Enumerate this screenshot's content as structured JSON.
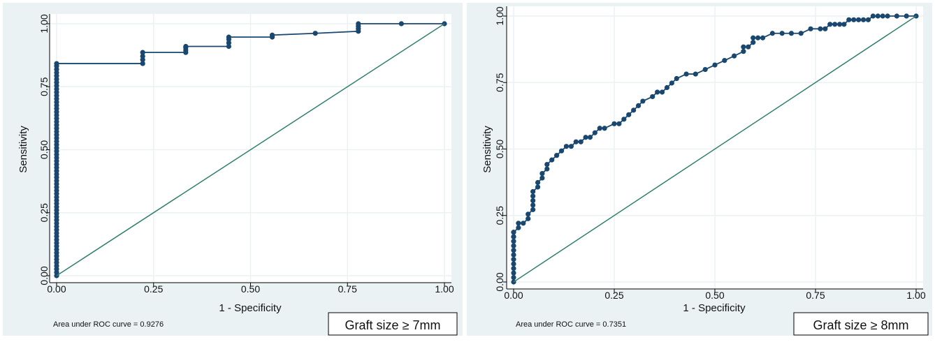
{
  "colors": {
    "outer_bg": "#eaf2f3",
    "plot_bg": "#ffffff",
    "grid": "#eaf2f3",
    "curve": "#1a476f",
    "reference": "#2f7f6e",
    "frame": "#000000"
  },
  "chart_data": [
    {
      "type": "line",
      "xlabel": "1 - Specificity",
      "ylabel": "Sensitivity",
      "xlim": [
        0,
        1
      ],
      "ylim": [
        0,
        1
      ],
      "x_ticks": [
        "0.00",
        "0.25",
        "0.50",
        "0.75",
        "1.00"
      ],
      "y_ticks": [
        "0.00",
        "0.25",
        "0.50",
        "0.75",
        "1.00"
      ],
      "grid": true,
      "auc_text": "Area under ROC curve = 0.9276",
      "box_label": "Graft size ≥ 7mm",
      "series": [
        {
          "role": "roc",
          "x": [
            0,
            0,
            0,
            0,
            0,
            0,
            0,
            0,
            0,
            0,
            0,
            0,
            0,
            0,
            0,
            0,
            0,
            0,
            0,
            0,
            0,
            0,
            0,
            0,
            0,
            0,
            0,
            0,
            0,
            0,
            0,
            0,
            0,
            0,
            0,
            0,
            0,
            0,
            0,
            0,
            0,
            0,
            0,
            0,
            0,
            0,
            0,
            0,
            0,
            0,
            0,
            0,
            0,
            0,
            0,
            0,
            0,
            0,
            0,
            0,
            0,
            0,
            0,
            0,
            0,
            0,
            0.222,
            0.222,
            0.222,
            0.222,
            0.333,
            0.333,
            0.333,
            0.333,
            0.444,
            0.444,
            0.444,
            0.444,
            0.556,
            0.556,
            0.667,
            0.778,
            0.778,
            0.778,
            0.778,
            0.889,
            1.0
          ],
          "y": [
            0,
            0.013,
            0.026,
            0.039,
            0.052,
            0.065,
            0.078,
            0.091,
            0.104,
            0.117,
            0.13,
            0.143,
            0.156,
            0.169,
            0.182,
            0.195,
            0.208,
            0.221,
            0.234,
            0.247,
            0.26,
            0.273,
            0.286,
            0.299,
            0.312,
            0.325,
            0.338,
            0.351,
            0.364,
            0.377,
            0.39,
            0.403,
            0.416,
            0.429,
            0.442,
            0.455,
            0.468,
            0.481,
            0.494,
            0.507,
            0.52,
            0.533,
            0.546,
            0.559,
            0.572,
            0.585,
            0.598,
            0.611,
            0.624,
            0.637,
            0.65,
            0.663,
            0.676,
            0.689,
            0.702,
            0.715,
            0.728,
            0.741,
            0.754,
            0.767,
            0.78,
            0.793,
            0.806,
            0.819,
            0.832,
            0.842,
            0.842,
            0.857,
            0.871,
            0.886,
            0.886,
            0.895,
            0.905,
            0.91,
            0.91,
            0.924,
            0.938,
            0.947,
            0.947,
            0.955,
            0.962,
            0.97,
            0.98,
            0.99,
            1.0,
            1.0,
            1.0
          ]
        },
        {
          "role": "reference",
          "x": [
            0,
            1
          ],
          "y": [
            0,
            1
          ]
        }
      ]
    },
    {
      "type": "line",
      "xlabel": "1 - Specificity",
      "ylabel": "Sensitivity",
      "xlim": [
        0,
        1
      ],
      "ylim": [
        0,
        1
      ],
      "x_ticks": [
        "0.00",
        "0.25",
        "0.50",
        "0.75",
        "1.00"
      ],
      "y_ticks": [
        "0.00",
        "0.25",
        "0.50",
        "0.75",
        "1.00"
      ],
      "grid": true,
      "auc_text": "Area under ROC curve = 0.7351",
      "box_label": "Graft size ≥ 8mm",
      "series": [
        {
          "role": "roc",
          "x": [
            0,
            0,
            0,
            0,
            0,
            0,
            0,
            0,
            0,
            0,
            0,
            0,
            0,
            0,
            0.012,
            0.012,
            0.024,
            0.036,
            0.036,
            0.048,
            0.048,
            0.048,
            0.048,
            0.048,
            0.06,
            0.06,
            0.071,
            0.071,
            0.083,
            0.083,
            0.095,
            0.107,
            0.119,
            0.131,
            0.143,
            0.155,
            0.167,
            0.179,
            0.19,
            0.202,
            0.214,
            0.226,
            0.25,
            0.262,
            0.274,
            0.286,
            0.298,
            0.31,
            0.321,
            0.345,
            0.357,
            0.369,
            0.381,
            0.393,
            0.405,
            0.429,
            0.452,
            0.476,
            0.5,
            0.524,
            0.548,
            0.571,
            0.571,
            0.583,
            0.595,
            0.595,
            0.607,
            0.619,
            0.643,
            0.667,
            0.69,
            0.714,
            0.738,
            0.762,
            0.774,
            0.786,
            0.798,
            0.81,
            0.821,
            0.833,
            0.845,
            0.857,
            0.869,
            0.881,
            0.893,
            0.905,
            0.917,
            0.929,
            0.952,
            0.976,
            1.0
          ],
          "y": [
            0,
            0.017,
            0.034,
            0.051,
            0.068,
            0.085,
            0.102,
            0.119,
            0.136,
            0.153,
            0.17,
            0.17,
            0.187,
            0.187,
            0.204,
            0.221,
            0.221,
            0.238,
            0.255,
            0.272,
            0.289,
            0.306,
            0.323,
            0.34,
            0.357,
            0.374,
            0.391,
            0.408,
            0.425,
            0.442,
            0.459,
            0.476,
            0.493,
            0.51,
            0.51,
            0.527,
            0.527,
            0.544,
            0.544,
            0.561,
            0.578,
            0.578,
            0.595,
            0.595,
            0.612,
            0.629,
            0.646,
            0.663,
            0.68,
            0.697,
            0.714,
            0.714,
            0.731,
            0.748,
            0.765,
            0.782,
            0.782,
            0.799,
            0.816,
            0.833,
            0.85,
            0.867,
            0.884,
            0.884,
            0.901,
            0.918,
            0.918,
            0.918,
            0.935,
            0.935,
            0.935,
            0.935,
            0.952,
            0.952,
            0.952,
            0.969,
            0.969,
            0.969,
            0.969,
            0.986,
            0.986,
            0.986,
            0.986,
            0.986,
            1.0,
            1.0,
            1.0,
            1.0,
            1.0,
            1.0,
            1.0
          ]
        },
        {
          "role": "reference",
          "x": [
            0,
            1
          ],
          "y": [
            0,
            1
          ]
        }
      ]
    }
  ]
}
